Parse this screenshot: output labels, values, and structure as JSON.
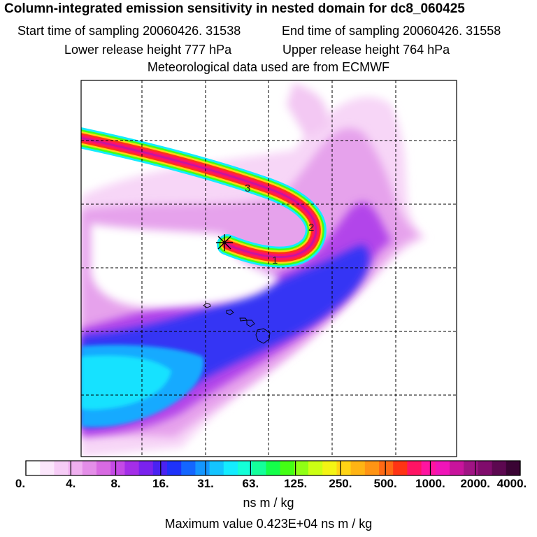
{
  "header": {
    "title": "Column-integrated emission sensitivity in nested domain for dc8_060425",
    "start_label": "Start time of sampling 20060426. 31538",
    "end_label": "End time of sampling 20060426. 31558",
    "lower_label": "Lower release height  777 hPa",
    "upper_label": "Upper release height  764 hPa",
    "met_label": "Meteorological data used are from ECMWF"
  },
  "map": {
    "track_time_labels": [
      "1",
      "2",
      "3"
    ],
    "release_marker": "asterisk-marker"
  },
  "colorbar": {
    "colors": [
      "#ffffff",
      "#fbe6fb",
      "#f6ccf6",
      "#f0b0f0",
      "#e48ee8",
      "#d86ae2",
      "#c44ae6",
      "#a42ee8",
      "#7a22ee",
      "#4a22f2",
      "#1e32fa",
      "#1466ff",
      "#1496ff",
      "#14c4ff",
      "#14ecff",
      "#14ffd8",
      "#14ff9a",
      "#14ff4a",
      "#44ff14",
      "#90ff14",
      "#ccff14",
      "#f4f414",
      "#ffd414",
      "#ffb414",
      "#ff9414",
      "#ff6a14",
      "#ff3414",
      "#ff1464",
      "#ff14a0",
      "#f014b8",
      "#c8149c",
      "#a01484",
      "#800c6c",
      "#5c0850",
      "#3a0434"
    ],
    "tick_labels": [
      "0.",
      "4.",
      "8.",
      "16.",
      "31.",
      "63.",
      "125.",
      "250.",
      "500.",
      "1000.",
      "2000.",
      "4000."
    ],
    "units_label": "ns m / kg"
  },
  "footer": {
    "max_value_label": "Maximum value  0.423E+04 ns m / kg"
  }
}
